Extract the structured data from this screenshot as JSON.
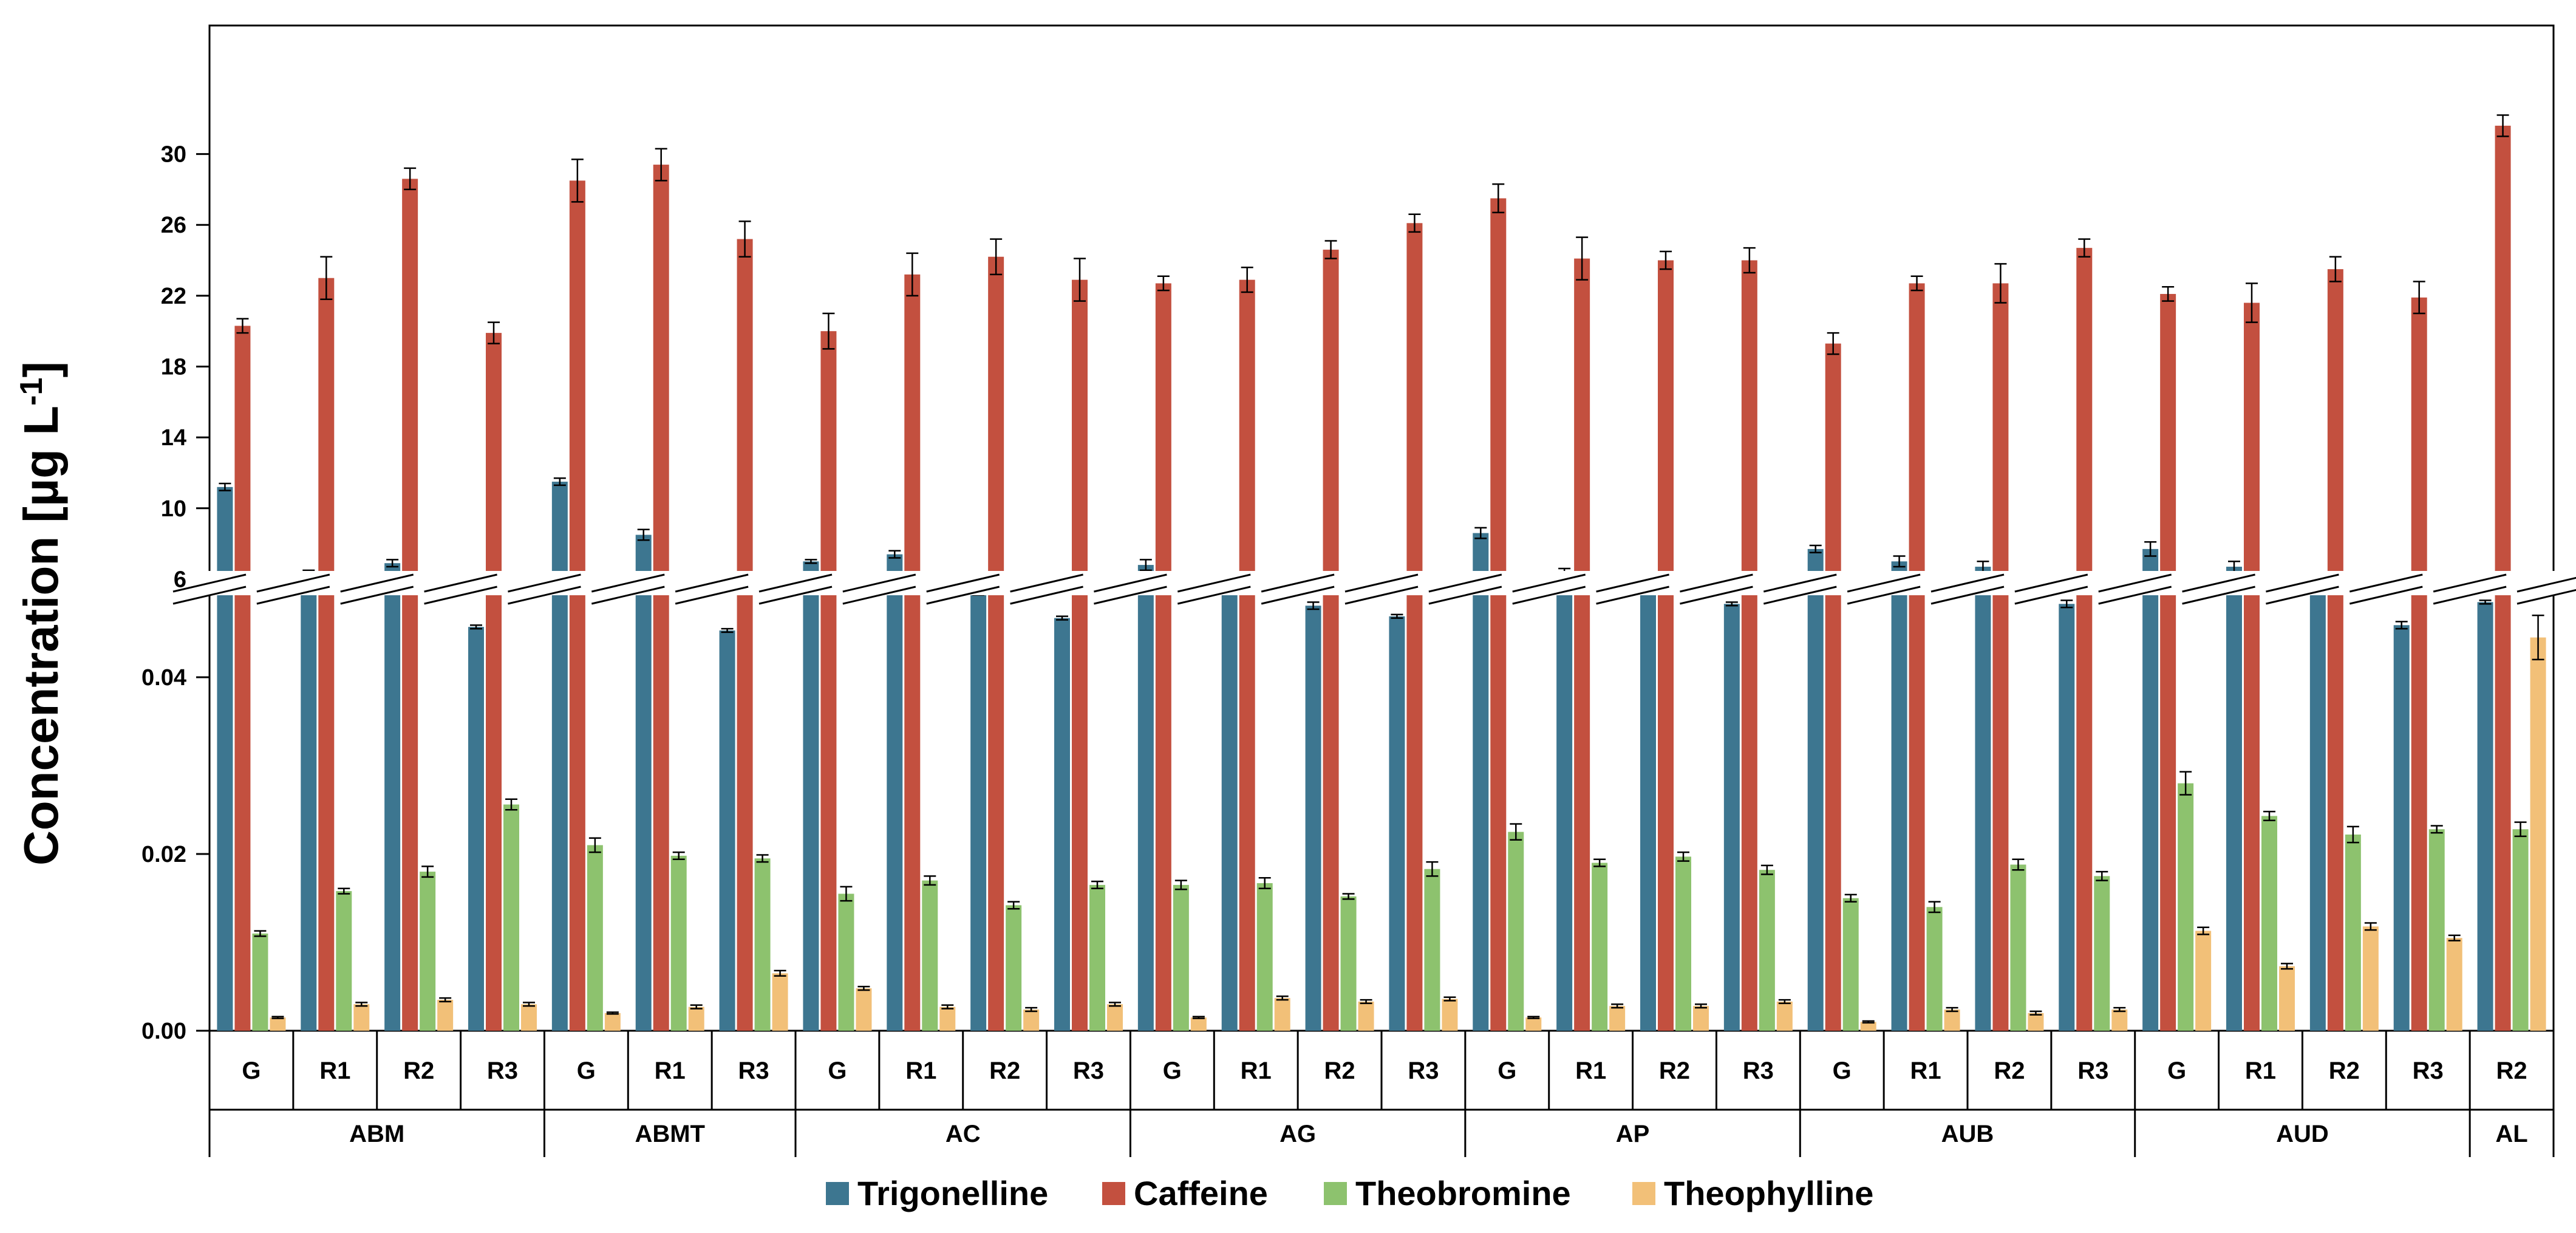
{
  "chart_data": {
    "type": "bar",
    "ylabel": "Concentration [µg L",
    "ylabel_sup": "-1",
    "ylabel_suffix": "]",
    "axis_break": true,
    "upper_axis": {
      "ylim": [
        2,
        32
      ],
      "ticks": [
        "6",
        "10",
        "14",
        "18",
        "22",
        "26",
        "30"
      ]
    },
    "lower_axis": {
      "ylim": [
        0,
        0.05
      ],
      "ticks": [
        "0.00",
        "0.02",
        "0.04"
      ]
    },
    "groups": [
      {
        "name": "ABM",
        "categories": [
          "G",
          "R1",
          "R2",
          "R3"
        ]
      },
      {
        "name": "ABMT",
        "categories": [
          "G",
          "R1",
          "R3"
        ]
      },
      {
        "name": "AC",
        "categories": [
          "G",
          "R1",
          "R2",
          "R3"
        ]
      },
      {
        "name": "AG",
        "categories": [
          "G",
          "R1",
          "R2",
          "R3"
        ]
      },
      {
        "name": "AP",
        "categories": [
          "G",
          "R1",
          "R2",
          "R3"
        ]
      },
      {
        "name": "AUB",
        "categories": [
          "G",
          "R1",
          "R2",
          "R3"
        ]
      },
      {
        "name": "AUD",
        "categories": [
          "G",
          "R1",
          "R2",
          "R3"
        ]
      },
      {
        "name": "AL",
        "categories": [
          "R2"
        ]
      }
    ],
    "series": [
      {
        "name": "Trigonelline",
        "color": "#3d7690",
        "axis": "upper",
        "values": [
          11.2,
          6.3,
          6.9,
          3.3,
          11.5,
          8.5,
          3.1,
          7.0,
          7.4,
          5.3,
          3.8,
          6.8,
          5.9,
          4.5,
          3.9,
          8.6,
          6.4,
          5.8,
          4.6,
          7.7,
          7.0,
          6.7,
          4.6,
          7.7,
          6.7,
          5.5,
          3.4,
          4.7
        ],
        "errors": [
          0.2,
          0.2,
          0.2,
          0.1,
          0.2,
          0.3,
          0.1,
          0.1,
          0.2,
          0.2,
          0.1,
          0.3,
          0.2,
          0.2,
          0.1,
          0.3,
          0.2,
          0.1,
          0.1,
          0.2,
          0.3,
          0.3,
          0.2,
          0.4,
          0.3,
          0.2,
          0.2,
          0.1
        ]
      },
      {
        "name": "Caffeine",
        "color": "#c3503f",
        "axis": "upper",
        "values": [
          20.3,
          23.0,
          28.6,
          19.9,
          28.5,
          29.4,
          25.2,
          20.0,
          23.2,
          24.2,
          22.9,
          22.7,
          22.9,
          24.6,
          26.1,
          27.5,
          24.1,
          24.0,
          24.0,
          19.3,
          22.7,
          22.7,
          24.7,
          22.1,
          21.6,
          23.5,
          21.9,
          31.6
        ],
        "errors": [
          0.4,
          1.2,
          0.6,
          0.6,
          1.2,
          0.9,
          1.0,
          1.0,
          1.2,
          1.0,
          1.2,
          0.4,
          0.7,
          0.5,
          0.5,
          0.8,
          1.2,
          0.5,
          0.7,
          0.6,
          0.4,
          1.1,
          0.5,
          0.4,
          1.1,
          0.7,
          0.9,
          0.6
        ]
      },
      {
        "name": "Theobromine",
        "color": "#8dc26e",
        "axis": "lower",
        "values": [
          0.011,
          0.0158,
          0.018,
          0.0256,
          0.021,
          0.0198,
          0.0195,
          0.0155,
          0.017,
          0.0142,
          0.0165,
          0.0165,
          0.0167,
          0.0152,
          0.0183,
          0.0225,
          0.019,
          0.0197,
          0.0182,
          0.015,
          0.014,
          0.0188,
          0.0175,
          0.028,
          0.0243,
          0.0222,
          0.0228,
          0.0228
        ],
        "errors": [
          0.0003,
          0.0003,
          0.0006,
          0.0006,
          0.0008,
          0.0004,
          0.0004,
          0.0008,
          0.0005,
          0.0004,
          0.0004,
          0.0005,
          0.0006,
          0.0003,
          0.0008,
          0.0009,
          0.0004,
          0.0005,
          0.0005,
          0.0004,
          0.0006,
          0.0006,
          0.0005,
          0.0013,
          0.0005,
          0.0009,
          0.0004,
          0.0008
        ]
      },
      {
        "name": "Theophylline",
        "color": "#f2c078",
        "axis": "lower",
        "values": [
          0.0015,
          0.003,
          0.0035,
          0.003,
          0.002,
          0.0027,
          0.0065,
          0.0048,
          0.0027,
          0.0024,
          0.003,
          0.0015,
          0.0037,
          0.0033,
          0.0036,
          0.0015,
          0.0028,
          0.0028,
          0.0033,
          0.001,
          0.0024,
          0.002,
          0.0024,
          0.0113,
          0.0073,
          0.0118,
          0.0105,
          0.0445
        ],
        "errors": [
          0.0001,
          0.0002,
          0.0002,
          0.0002,
          0.0001,
          0.0002,
          0.0003,
          0.0002,
          0.0002,
          0.0002,
          0.0002,
          0.0001,
          0.0002,
          0.0002,
          0.0002,
          0.0001,
          0.0002,
          0.0002,
          0.0002,
          0.0001,
          0.0002,
          0.0002,
          0.0002,
          0.0004,
          0.0003,
          0.0004,
          0.0003,
          0.0025
        ]
      }
    ],
    "legend_placement": "bottom-center"
  }
}
